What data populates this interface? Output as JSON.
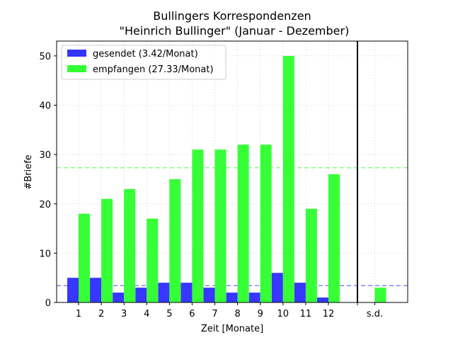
{
  "chart_data": {
    "type": "bar",
    "title_line1": "Bullingers Korrespondenzen",
    "title_line2": "\"Heinrich Bullinger\" (Januar - Dezember)",
    "xlabel": "Zeit [Monate]",
    "ylabel": "#Briefe",
    "ylim": [
      0,
      53
    ],
    "yticks": [
      "0",
      "10",
      "20",
      "30",
      "40",
      "50"
    ],
    "grid": true,
    "legend_position": "top-left",
    "categories": [
      "1",
      "2",
      "3",
      "4",
      "5",
      "6",
      "7",
      "8",
      "9",
      "10",
      "11",
      "12",
      "s.d."
    ],
    "series": [
      {
        "name": "gesendet (3.42/Monat)",
        "color": "#3333ff",
        "values": [
          5,
          5,
          2,
          3,
          4,
          4,
          3,
          2,
          2,
          6,
          4,
          1,
          0
        ],
        "mean": 3.42
      },
      {
        "name": "empfangen (27.33/Monat)",
        "color": "#33ff33",
        "values": [
          18,
          21,
          23,
          17,
          25,
          31,
          31,
          32,
          32,
          50,
          19,
          26,
          3
        ],
        "mean": 27.33
      }
    ],
    "separator_after_category": "12"
  }
}
